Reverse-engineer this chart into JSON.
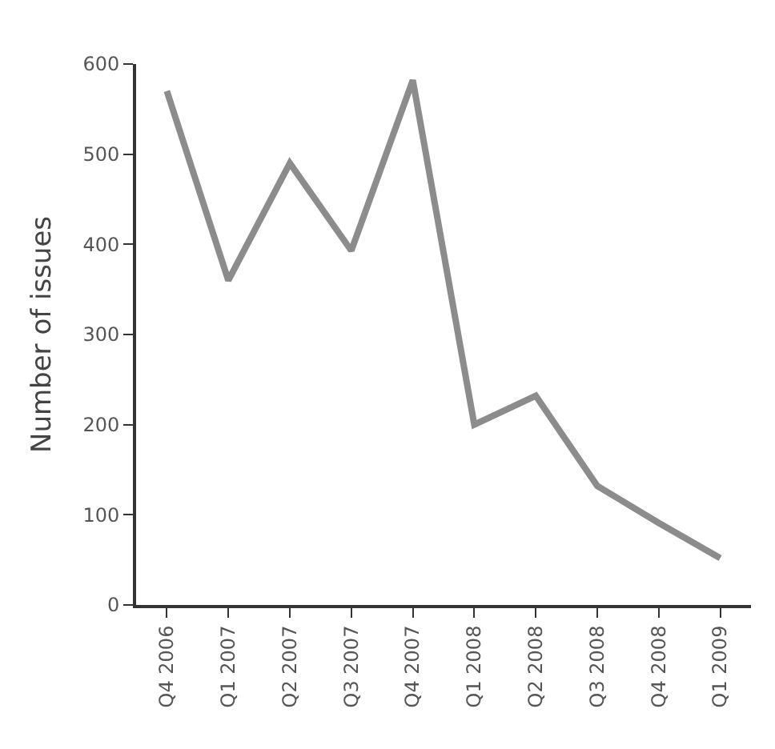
{
  "chart_data": {
    "type": "line",
    "ylabel": "Number of issues",
    "categories": [
      "Q4 2006",
      "Q1 2007",
      "Q2 2007",
      "Q3 2007",
      "Q4 2007",
      "Q1 2008",
      "Q2 2008",
      "Q3 2008",
      "Q4 2008",
      "Q1 2009"
    ],
    "series": [
      {
        "color": "#8c8c8c",
        "values": [
          570,
          360,
          490,
          393,
          582,
          200,
          232,
          132,
          91,
          52
        ]
      }
    ],
    "ylim": [
      0,
      600
    ],
    "yticks": [
      0,
      100,
      200,
      300,
      400,
      500,
      600
    ],
    "marker": "none",
    "line_style": "solid"
  }
}
